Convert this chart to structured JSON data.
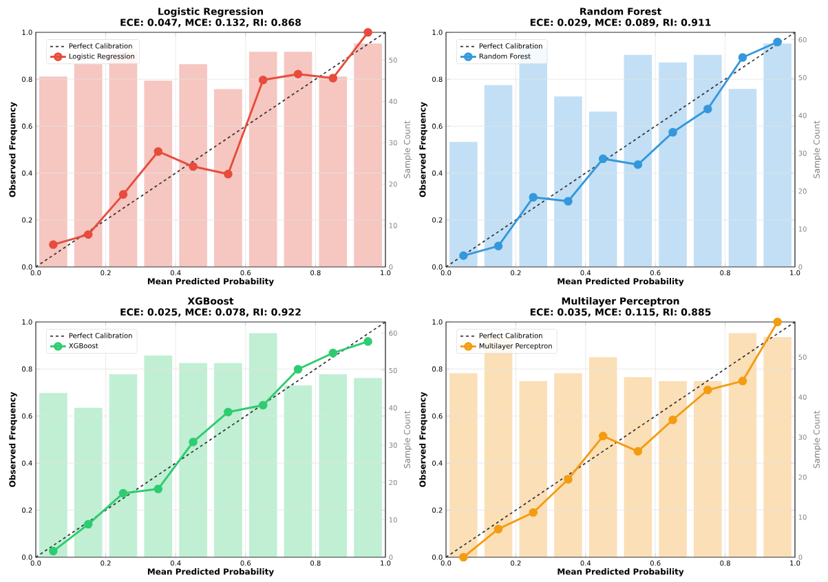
{
  "chart_data": [
    {
      "type": "line",
      "title": "Logistic Regression",
      "subtitle": "ECE: 0.047, MCE: 0.132, RI: 0.868",
      "xlabel": "Mean Predicted Probability",
      "ylabel": "Observed Frequency",
      "y2label": "Sample Count",
      "xlim": [
        0,
        1
      ],
      "xticks": [
        {
          "value": 0,
          "label": "0.0"
        },
        {
          "value": 0.2,
          "label": "0.2"
        },
        {
          "value": 0.4,
          "label": "0.4"
        },
        {
          "value": 0.6,
          "label": "0.6"
        },
        {
          "value": 0.8,
          "label": "0.8"
        },
        {
          "value": 1,
          "label": "1.0"
        }
      ],
      "ylim": [
        0,
        1
      ],
      "yticks": [
        {
          "value": 0,
          "label": "0.0"
        },
        {
          "value": 0.2,
          "label": "0.2"
        },
        {
          "value": 0.4,
          "label": "0.4"
        },
        {
          "value": 0.6,
          "label": "0.6"
        },
        {
          "value": 0.8,
          "label": "0.8"
        },
        {
          "value": 1,
          "label": "1.0"
        }
      ],
      "y2lim": [
        0,
        56.7
      ],
      "y2ticks": [
        0,
        10,
        20,
        30,
        40,
        50
      ],
      "grid": true,
      "legend": "top left",
      "series": [
        {
          "type": "bar",
          "axis": "y2",
          "color": "#f6c6c1",
          "x": [
            0.05,
            0.15,
            0.25,
            0.35,
            0.45,
            0.55,
            0.65,
            0.75,
            0.85,
            0.95
          ],
          "values": [
            46,
            49,
            52,
            45,
            49,
            43,
            52,
            52,
            46,
            54
          ]
        },
        {
          "type": "line",
          "name": "Perfect Calibration",
          "color": "#333333",
          "line_style": "dashed",
          "marker": "none",
          "x": [
            0,
            1
          ],
          "values": [
            0,
            1
          ]
        },
        {
          "name": "Logistic Regression",
          "color": "#e74c3c",
          "line_style": "solid",
          "marker": "circle",
          "x": [
            0.05,
            0.15,
            0.25,
            0.35,
            0.45,
            0.55,
            0.65,
            0.75,
            0.85,
            0.95
          ],
          "values": [
            0.095,
            0.138,
            0.309,
            0.492,
            0.428,
            0.396,
            0.797,
            0.822,
            0.805,
            1.0
          ]
        }
      ]
    },
    {
      "type": "line",
      "title": "Random Forest",
      "subtitle": "ECE: 0.029, MCE: 0.089, RI: 0.911",
      "xlabel": "Mean Predicted Probability",
      "ylabel": "Observed Frequency",
      "y2label": "Sample Count",
      "xlim": [
        0,
        1
      ],
      "xticks": [
        {
          "value": 0,
          "label": "0.0"
        },
        {
          "value": 0.2,
          "label": "0.2"
        },
        {
          "value": 0.4,
          "label": "0.4"
        },
        {
          "value": 0.6,
          "label": "0.6"
        },
        {
          "value": 0.8,
          "label": "0.8"
        },
        {
          "value": 1,
          "label": "1.0"
        }
      ],
      "ylim": [
        0,
        1
      ],
      "yticks": [
        {
          "value": 0,
          "label": "0.0"
        },
        {
          "value": 0.2,
          "label": "0.2"
        },
        {
          "value": 0.4,
          "label": "0.4"
        },
        {
          "value": 0.6,
          "label": "0.6"
        },
        {
          "value": 0.8,
          "label": "0.8"
        },
        {
          "value": 1,
          "label": "1.0"
        }
      ],
      "y2lim": [
        0,
        61.95
      ],
      "y2ticks": [
        0,
        10,
        20,
        30,
        40,
        50,
        60
      ],
      "grid": true,
      "legend": "top left",
      "series": [
        {
          "type": "bar",
          "axis": "y2",
          "color": "#c2dff5",
          "x": [
            0.05,
            0.15,
            0.25,
            0.35,
            0.45,
            0.55,
            0.65,
            0.75,
            0.85,
            0.95
          ],
          "values": [
            33,
            48,
            58,
            45,
            41,
            56,
            54,
            56,
            47,
            59
          ]
        },
        {
          "type": "line",
          "name": "Perfect Calibration",
          "color": "#333333",
          "line_style": "dashed",
          "marker": "none",
          "x": [
            0,
            1
          ],
          "values": [
            0,
            1
          ]
        },
        {
          "name": "Random Forest",
          "color": "#3498db",
          "line_style": "solid",
          "marker": "circle",
          "x": [
            0.05,
            0.15,
            0.25,
            0.35,
            0.45,
            0.55,
            0.65,
            0.75,
            0.85,
            0.95
          ],
          "values": [
            0.048,
            0.089,
            0.297,
            0.28,
            0.461,
            0.436,
            0.574,
            0.673,
            0.893,
            0.959
          ]
        }
      ]
    },
    {
      "type": "line",
      "title": "XGBoost",
      "subtitle": "ECE: 0.025, MCE: 0.078, RI: 0.922",
      "xlabel": "Mean Predicted Probability",
      "ylabel": "Observed Frequency",
      "y2label": "Sample Count",
      "xlim": [
        0,
        1
      ],
      "xticks": [
        {
          "value": 0,
          "label": "0.0"
        },
        {
          "value": 0.2,
          "label": "0.2"
        },
        {
          "value": 0.4,
          "label": "0.4"
        },
        {
          "value": 0.6,
          "label": "0.6"
        },
        {
          "value": 0.8,
          "label": "0.8"
        },
        {
          "value": 1,
          "label": "1.0"
        }
      ],
      "ylim": [
        0,
        1
      ],
      "yticks": [
        {
          "value": 0,
          "label": "0.0"
        },
        {
          "value": 0.2,
          "label": "0.2"
        },
        {
          "value": 0.4,
          "label": "0.4"
        },
        {
          "value": 0.6,
          "label": "0.6"
        },
        {
          "value": 0.8,
          "label": "0.8"
        },
        {
          "value": 1,
          "label": "1.0"
        }
      ],
      "y2lim": [
        0,
        63
      ],
      "y2ticks": [
        0,
        10,
        20,
        30,
        40,
        50,
        60
      ],
      "grid": true,
      "legend": "top left",
      "series": [
        {
          "type": "bar",
          "axis": "y2",
          "color": "#c0efd4",
          "x": [
            0.05,
            0.15,
            0.25,
            0.35,
            0.45,
            0.55,
            0.65,
            0.75,
            0.85,
            0.95
          ],
          "values": [
            44,
            40,
            49,
            54,
            52,
            52,
            60,
            46,
            49,
            48
          ]
        },
        {
          "type": "line",
          "name": "Perfect Calibration",
          "color": "#333333",
          "line_style": "dashed",
          "marker": "none",
          "x": [
            0,
            1
          ],
          "values": [
            0,
            1
          ]
        },
        {
          "name": "XGBoost",
          "color": "#2ecc71",
          "line_style": "solid",
          "marker": "circle",
          "x": [
            0.05,
            0.15,
            0.25,
            0.35,
            0.45,
            0.55,
            0.65,
            0.75,
            0.85,
            0.95
          ],
          "values": [
            0.026,
            0.14,
            0.272,
            0.29,
            0.49,
            0.617,
            0.646,
            0.799,
            0.868,
            0.917
          ]
        }
      ]
    },
    {
      "type": "line",
      "title": "Multilayer Perceptron",
      "subtitle": "ECE: 0.035, MCE: 0.115, RI: 0.885",
      "xlabel": "Mean Predicted Probability",
      "ylabel": "Observed Frequency",
      "y2label": "Sample Count",
      "xlim": [
        0,
        1
      ],
      "xticks": [
        {
          "value": 0,
          "label": "0.0"
        },
        {
          "value": 0.2,
          "label": "0.2"
        },
        {
          "value": 0.4,
          "label": "0.4"
        },
        {
          "value": 0.6,
          "label": "0.6"
        },
        {
          "value": 0.8,
          "label": "0.8"
        },
        {
          "value": 1,
          "label": "1.0"
        }
      ],
      "ylim": [
        0,
        1
      ],
      "yticks": [
        {
          "value": 0,
          "label": "0.0"
        },
        {
          "value": 0.2,
          "label": "0.2"
        },
        {
          "value": 0.4,
          "label": "0.4"
        },
        {
          "value": 0.6,
          "label": "0.6"
        },
        {
          "value": 0.8,
          "label": "0.8"
        },
        {
          "value": 1,
          "label": "1.0"
        }
      ],
      "y2lim": [
        0,
        58.8
      ],
      "y2ticks": [
        0,
        10,
        20,
        30,
        40,
        50
      ],
      "grid": true,
      "legend": "top left",
      "series": [
        {
          "type": "bar",
          "axis": "y2",
          "color": "#fbdfb7",
          "x": [
            0.05,
            0.15,
            0.25,
            0.35,
            0.45,
            0.55,
            0.65,
            0.75,
            0.85,
            0.95
          ],
          "values": [
            46,
            55,
            44,
            46,
            50,
            45,
            44,
            44,
            56,
            55
          ]
        },
        {
          "type": "line",
          "name": "Perfect Calibration",
          "color": "#333333",
          "line_style": "dashed",
          "marker": "none",
          "x": [
            0,
            1
          ],
          "values": [
            0,
            1
          ]
        },
        {
          "name": "Multilayer Perceptron",
          "color": "#f39c12",
          "line_style": "solid",
          "marker": "circle",
          "x": [
            0.05,
            0.15,
            0.25,
            0.35,
            0.45,
            0.55,
            0.65,
            0.75,
            0.85,
            0.95
          ],
          "values": [
            0.0,
            0.12,
            0.19,
            0.331,
            0.515,
            0.45,
            0.584,
            0.711,
            0.749,
            1.0
          ]
        }
      ]
    }
  ]
}
